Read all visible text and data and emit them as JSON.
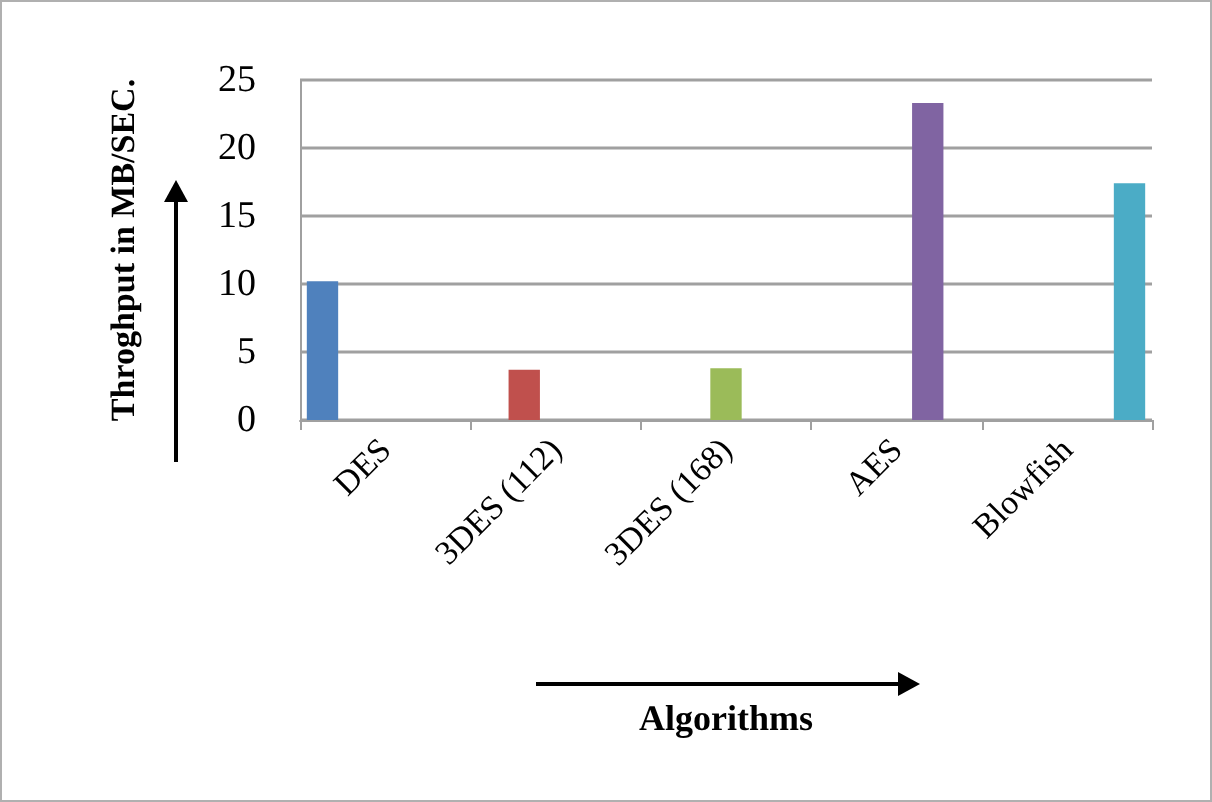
{
  "chart_data": {
    "type": "bar",
    "xlabel": "Algorithms",
    "ylabel": "Throghput in MB/SEC.",
    "categories": [
      "DES",
      "3DES (112)",
      "3DES (168)",
      "AES",
      "Blowfish"
    ],
    "series": [
      {
        "color": "#4f81bd",
        "values": [
          10.2,
          null,
          null,
          null,
          null
        ]
      },
      {
        "color": "#c0504d",
        "values": [
          null,
          3.7,
          null,
          null,
          null
        ]
      },
      {
        "color": "#9bbb59",
        "values": [
          null,
          null,
          3.8,
          null,
          null
        ]
      },
      {
        "color": "#8064a2",
        "values": [
          null,
          null,
          null,
          23.3,
          null
        ]
      },
      {
        "color": "#4bacc6",
        "values": [
          null,
          null,
          null,
          null,
          17.4
        ]
      }
    ],
    "ylim": [
      0,
      25
    ],
    "yticks": [
      0,
      5,
      10,
      15,
      20,
      25
    ],
    "grid": "y"
  }
}
